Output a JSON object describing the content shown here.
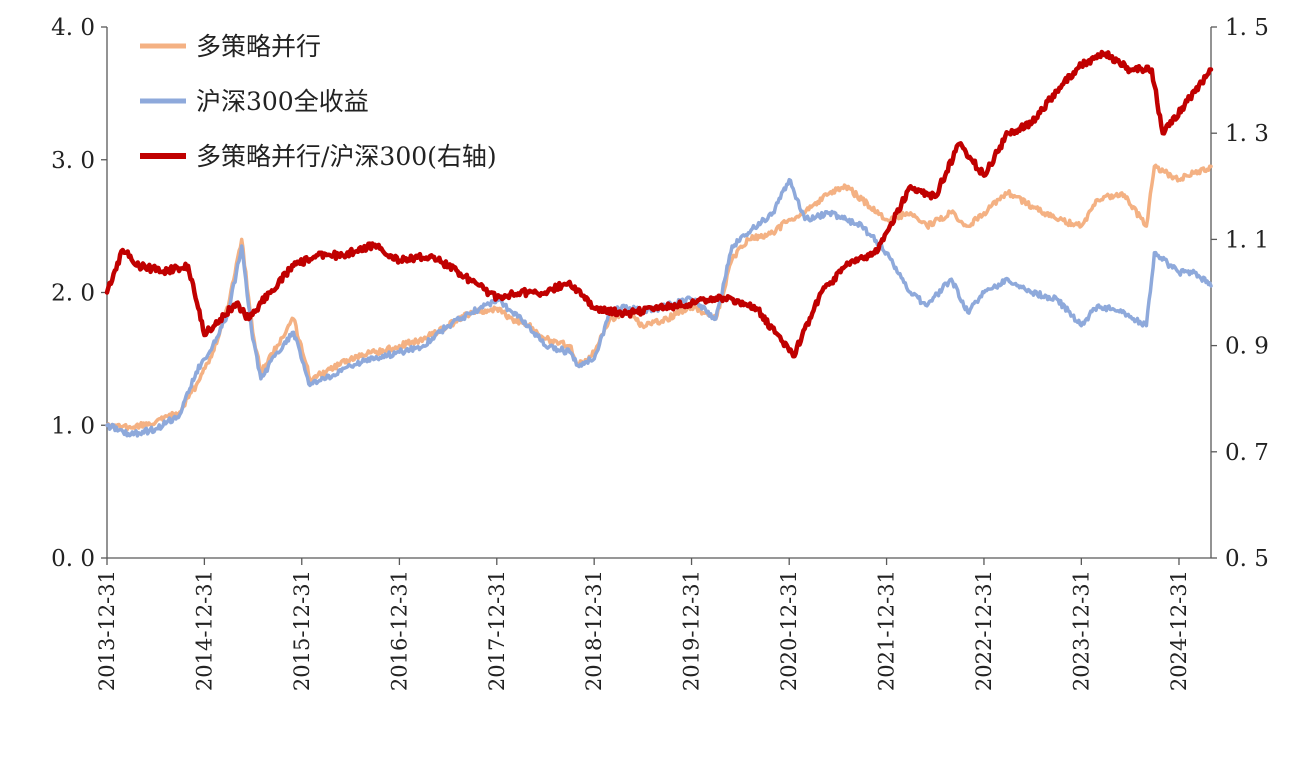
{
  "colors": {
    "strategy": "#F4B183",
    "index": "#8EA9DB",
    "ratio": "#C00000",
    "axis": "#595959"
  },
  "chart_data": {
    "type": "line",
    "title": "",
    "legend": {
      "position": "top-left"
    },
    "grid": false,
    "y_left": {
      "ticks": [
        "0. 0",
        "1. 0",
        "2. 0",
        "3. 0",
        "4. 0"
      ],
      "range": [
        0,
        4
      ]
    },
    "y_right": {
      "ticks": [
        "0. 5",
        "0. 7",
        "0. 9",
        "1. 1",
        "1. 3",
        "1. 5"
      ],
      "range": [
        0.5,
        1.5
      ]
    },
    "x_range": [
      "2013-12-31",
      "2025-04-30"
    ],
    "x_ticks": [
      "2013-12-31",
      "2014-12-31",
      "2015-12-31",
      "2016-12-31",
      "2017-12-31",
      "2018-12-31",
      "2019-12-31",
      "2020-12-31",
      "2021-12-31",
      "2022-12-31",
      "2023-12-31",
      "2024-12-31"
    ],
    "series": [
      {
        "name": "多策略并行",
        "axis": "left",
        "color_key": "strategy",
        "points": [
          [
            "2013-12-31",
            1.0
          ],
          [
            "2014-03-31",
            0.98
          ],
          [
            "2014-06-30",
            1.02
          ],
          [
            "2014-09-30",
            1.1
          ],
          [
            "2014-11-30",
            1.3
          ],
          [
            "2015-01-31",
            1.55
          ],
          [
            "2015-03-31",
            1.9
          ],
          [
            "2015-05-20",
            2.4
          ],
          [
            "2015-06-30",
            1.7
          ],
          [
            "2015-07-31",
            1.4
          ],
          [
            "2015-09-30",
            1.6
          ],
          [
            "2015-11-30",
            1.8
          ],
          [
            "2016-01-31",
            1.35
          ],
          [
            "2016-03-31",
            1.4
          ],
          [
            "2016-06-30",
            1.5
          ],
          [
            "2016-09-30",
            1.55
          ],
          [
            "2016-12-31",
            1.6
          ],
          [
            "2017-03-31",
            1.65
          ],
          [
            "2017-06-30",
            1.75
          ],
          [
            "2017-09-30",
            1.85
          ],
          [
            "2017-12-31",
            1.88
          ],
          [
            "2018-02-28",
            1.8
          ],
          [
            "2018-04-30",
            1.75
          ],
          [
            "2018-06-30",
            1.65
          ],
          [
            "2018-09-30",
            1.6
          ],
          [
            "2018-10-31",
            1.45
          ],
          [
            "2018-12-31",
            1.55
          ],
          [
            "2019-02-28",
            1.8
          ],
          [
            "2019-04-30",
            1.85
          ],
          [
            "2019-06-30",
            1.75
          ],
          [
            "2019-09-30",
            1.8
          ],
          [
            "2019-12-31",
            1.9
          ],
          [
            "2020-03-31",
            1.8
          ],
          [
            "2020-05-31",
            2.25
          ],
          [
            "2020-07-31",
            2.4
          ],
          [
            "2020-10-31",
            2.45
          ],
          [
            "2020-12-31",
            2.55
          ],
          [
            "2021-02-28",
            2.6
          ],
          [
            "2021-05-31",
            2.75
          ],
          [
            "2021-07-31",
            2.8
          ],
          [
            "2021-09-30",
            2.7
          ],
          [
            "2021-12-31",
            2.55
          ],
          [
            "2022-03-31",
            2.6
          ],
          [
            "2022-05-31",
            2.5
          ],
          [
            "2022-08-31",
            2.6
          ],
          [
            "2022-10-31",
            2.5
          ],
          [
            "2022-12-31",
            2.6
          ],
          [
            "2023-03-31",
            2.75
          ],
          [
            "2023-06-30",
            2.65
          ],
          [
            "2023-09-30",
            2.55
          ],
          [
            "2023-12-31",
            2.5
          ],
          [
            "2024-02-29",
            2.7
          ],
          [
            "2024-05-31",
            2.75
          ],
          [
            "2024-08-31",
            2.5
          ],
          [
            "2024-09-30",
            2.95
          ],
          [
            "2024-12-31",
            2.85
          ],
          [
            "2025-02-28",
            2.9
          ],
          [
            "2025-04-30",
            2.95
          ]
        ]
      },
      {
        "name": "沪深300全收益",
        "axis": "left",
        "color_key": "index",
        "points": [
          [
            "2013-12-31",
            1.0
          ],
          [
            "2014-03-31",
            0.93
          ],
          [
            "2014-06-30",
            0.97
          ],
          [
            "2014-09-30",
            1.08
          ],
          [
            "2014-11-30",
            1.4
          ],
          [
            "2015-01-31",
            1.6
          ],
          [
            "2015-03-31",
            1.85
          ],
          [
            "2015-05-20",
            2.35
          ],
          [
            "2015-06-30",
            1.65
          ],
          [
            "2015-07-31",
            1.35
          ],
          [
            "2015-09-30",
            1.55
          ],
          [
            "2015-11-30",
            1.7
          ],
          [
            "2016-01-31",
            1.3
          ],
          [
            "2016-03-31",
            1.35
          ],
          [
            "2016-06-30",
            1.45
          ],
          [
            "2016-09-30",
            1.5
          ],
          [
            "2016-12-31",
            1.55
          ],
          [
            "2017-03-31",
            1.6
          ],
          [
            "2017-06-30",
            1.75
          ],
          [
            "2017-09-30",
            1.85
          ],
          [
            "2017-12-31",
            1.95
          ],
          [
            "2018-02-28",
            1.85
          ],
          [
            "2018-04-30",
            1.75
          ],
          [
            "2018-06-30",
            1.6
          ],
          [
            "2018-09-30",
            1.55
          ],
          [
            "2018-10-31",
            1.45
          ],
          [
            "2018-12-31",
            1.5
          ],
          [
            "2019-02-28",
            1.85
          ],
          [
            "2019-04-30",
            1.9
          ],
          [
            "2019-06-30",
            1.85
          ],
          [
            "2019-09-30",
            1.9
          ],
          [
            "2019-12-31",
            1.95
          ],
          [
            "2020-03-31",
            1.8
          ],
          [
            "2020-05-31",
            2.35
          ],
          [
            "2020-07-31",
            2.45
          ],
          [
            "2020-10-31",
            2.6
          ],
          [
            "2020-12-31",
            2.85
          ],
          [
            "2021-02-28",
            2.55
          ],
          [
            "2021-05-31",
            2.6
          ],
          [
            "2021-07-31",
            2.55
          ],
          [
            "2021-09-30",
            2.5
          ],
          [
            "2021-12-31",
            2.3
          ],
          [
            "2022-03-31",
            2.0
          ],
          [
            "2022-05-31",
            1.9
          ],
          [
            "2022-08-31",
            2.1
          ],
          [
            "2022-10-31",
            1.85
          ],
          [
            "2022-12-31",
            2.0
          ],
          [
            "2023-03-31",
            2.1
          ],
          [
            "2023-06-30",
            2.0
          ],
          [
            "2023-09-30",
            1.95
          ],
          [
            "2023-12-31",
            1.75
          ],
          [
            "2024-02-29",
            1.9
          ],
          [
            "2024-05-31",
            1.85
          ],
          [
            "2024-08-31",
            1.75
          ],
          [
            "2024-09-30",
            2.3
          ],
          [
            "2024-12-31",
            2.15
          ],
          [
            "2025-02-28",
            2.15
          ],
          [
            "2025-04-30",
            2.05
          ]
        ]
      },
      {
        "name": "多策略并行/沪深300(右轴)",
        "axis": "right",
        "color_key": "ratio",
        "points": [
          [
            "2013-12-31",
            1.0
          ],
          [
            "2014-02-28",
            1.08
          ],
          [
            "2014-04-30",
            1.05
          ],
          [
            "2014-07-31",
            1.04
          ],
          [
            "2014-10-31",
            1.05
          ],
          [
            "2014-12-31",
            0.92
          ],
          [
            "2015-02-28",
            0.95
          ],
          [
            "2015-04-30",
            0.98
          ],
          [
            "2015-06-15",
            0.95
          ],
          [
            "2015-08-31",
            1.0
          ],
          [
            "2015-11-30",
            1.05
          ],
          [
            "2016-02-29",
            1.07
          ],
          [
            "2016-05-31",
            1.07
          ],
          [
            "2016-09-30",
            1.09
          ],
          [
            "2016-12-31",
            1.06
          ],
          [
            "2017-04-30",
            1.07
          ],
          [
            "2017-08-31",
            1.03
          ],
          [
            "2017-12-31",
            0.99
          ],
          [
            "2018-03-31",
            1.0
          ],
          [
            "2018-06-30",
            1.0
          ],
          [
            "2018-09-30",
            1.02
          ],
          [
            "2018-12-31",
            0.97
          ],
          [
            "2019-04-30",
            0.96
          ],
          [
            "2019-08-31",
            0.97
          ],
          [
            "2019-12-31",
            0.98
          ],
          [
            "2020-04-30",
            0.99
          ],
          [
            "2020-08-31",
            0.97
          ],
          [
            "2021-01-15",
            0.88
          ],
          [
            "2021-04-30",
            1.0
          ],
          [
            "2021-07-31",
            1.05
          ],
          [
            "2021-11-30",
            1.08
          ],
          [
            "2022-03-31",
            1.2
          ],
          [
            "2022-06-30",
            1.18
          ],
          [
            "2022-09-30",
            1.28
          ],
          [
            "2022-12-31",
            1.22
          ],
          [
            "2023-03-31",
            1.3
          ],
          [
            "2023-06-30",
            1.32
          ],
          [
            "2023-09-30",
            1.38
          ],
          [
            "2023-12-31",
            1.43
          ],
          [
            "2024-03-31",
            1.45
          ],
          [
            "2024-06-30",
            1.42
          ],
          [
            "2024-09-20",
            1.42
          ],
          [
            "2024-10-31",
            1.3
          ],
          [
            "2025-01-31",
            1.36
          ],
          [
            "2025-04-30",
            1.42
          ]
        ]
      }
    ]
  }
}
